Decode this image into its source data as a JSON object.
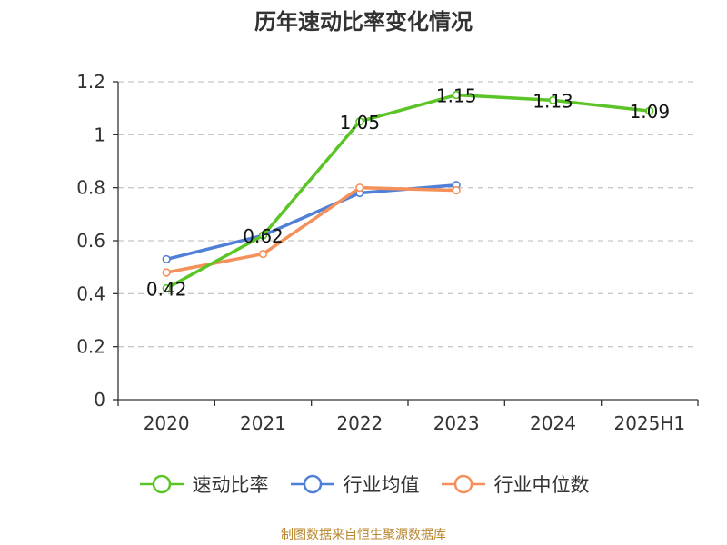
{
  "title": "历年速动比率变化情况",
  "source": "制图数据来自恒生聚源数据库",
  "chart_data": {
    "type": "line",
    "title": "历年速动比率变化情况",
    "categories": [
      "2020",
      "2021",
      "2022",
      "2023",
      "2024",
      "2025H1"
    ],
    "ylim": [
      0,
      1.2
    ],
    "yticks": [
      0,
      0.2,
      0.4,
      0.6,
      0.8,
      1,
      1.2
    ],
    "ytick_labels": [
      "0",
      "0.2",
      "0.4",
      "0.6",
      "0.8",
      "1",
      "1.2"
    ],
    "grid": true,
    "legend_position": "bottom",
    "series": [
      {
        "name": "速动比率",
        "color": "#5bc427",
        "values": [
          0.42,
          0.62,
          1.05,
          1.15,
          1.13,
          1.09
        ],
        "labels": [
          "0.42",
          "0.62",
          "1.05",
          "1.15",
          "1.13",
          "1.09"
        ]
      },
      {
        "name": "行业均值",
        "color": "#4f7fd6",
        "values": [
          0.53,
          0.62,
          0.78,
          0.81,
          null,
          null
        ]
      },
      {
        "name": "行业中位数",
        "color": "#f5905a",
        "values": [
          0.48,
          0.55,
          0.8,
          0.79,
          null,
          null
        ]
      }
    ]
  }
}
